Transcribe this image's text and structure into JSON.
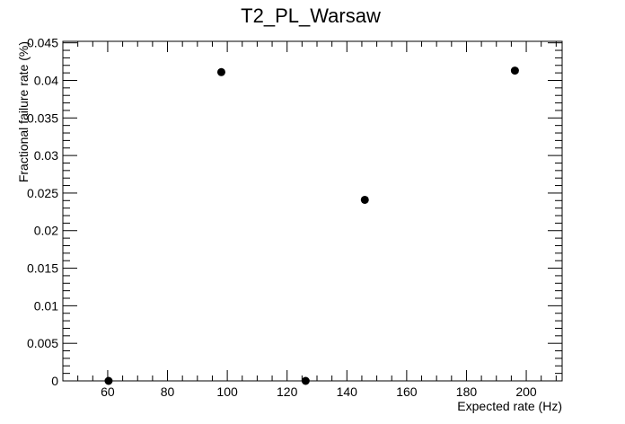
{
  "chart_data": {
    "type": "scatter",
    "title": "T2_PL_Warsaw",
    "xlabel": "Expected rate (Hz)",
    "ylabel": "Fractional failure rate (%)",
    "xlim": [
      45,
      212
    ],
    "ylim": [
      0,
      0.0452
    ],
    "x_ticks": [
      60,
      80,
      100,
      120,
      140,
      160,
      180,
      200
    ],
    "x_tick_labels": [
      "60",
      "80",
      "100",
      "120",
      "140",
      "160",
      "180",
      "200"
    ],
    "y_ticks": [
      0,
      0.005,
      0.01,
      0.015,
      0.02,
      0.025,
      0.03,
      0.035,
      0.04,
      0.045
    ],
    "y_tick_labels": [
      "0",
      "0.005",
      "0.01",
      "0.015",
      "0.02",
      "0.025",
      "0.03",
      "0.035",
      "0.04",
      "0.045"
    ],
    "grid": false,
    "series": [
      {
        "x": [
          60.3,
          98,
          126.2,
          146,
          196.2
        ],
        "y": [
          0,
          0.0411,
          0,
          0.0241,
          0.0413
        ]
      }
    ],
    "colors": {
      "marker": "#000000",
      "axis": "#000000",
      "background": "#ffffff"
    }
  }
}
